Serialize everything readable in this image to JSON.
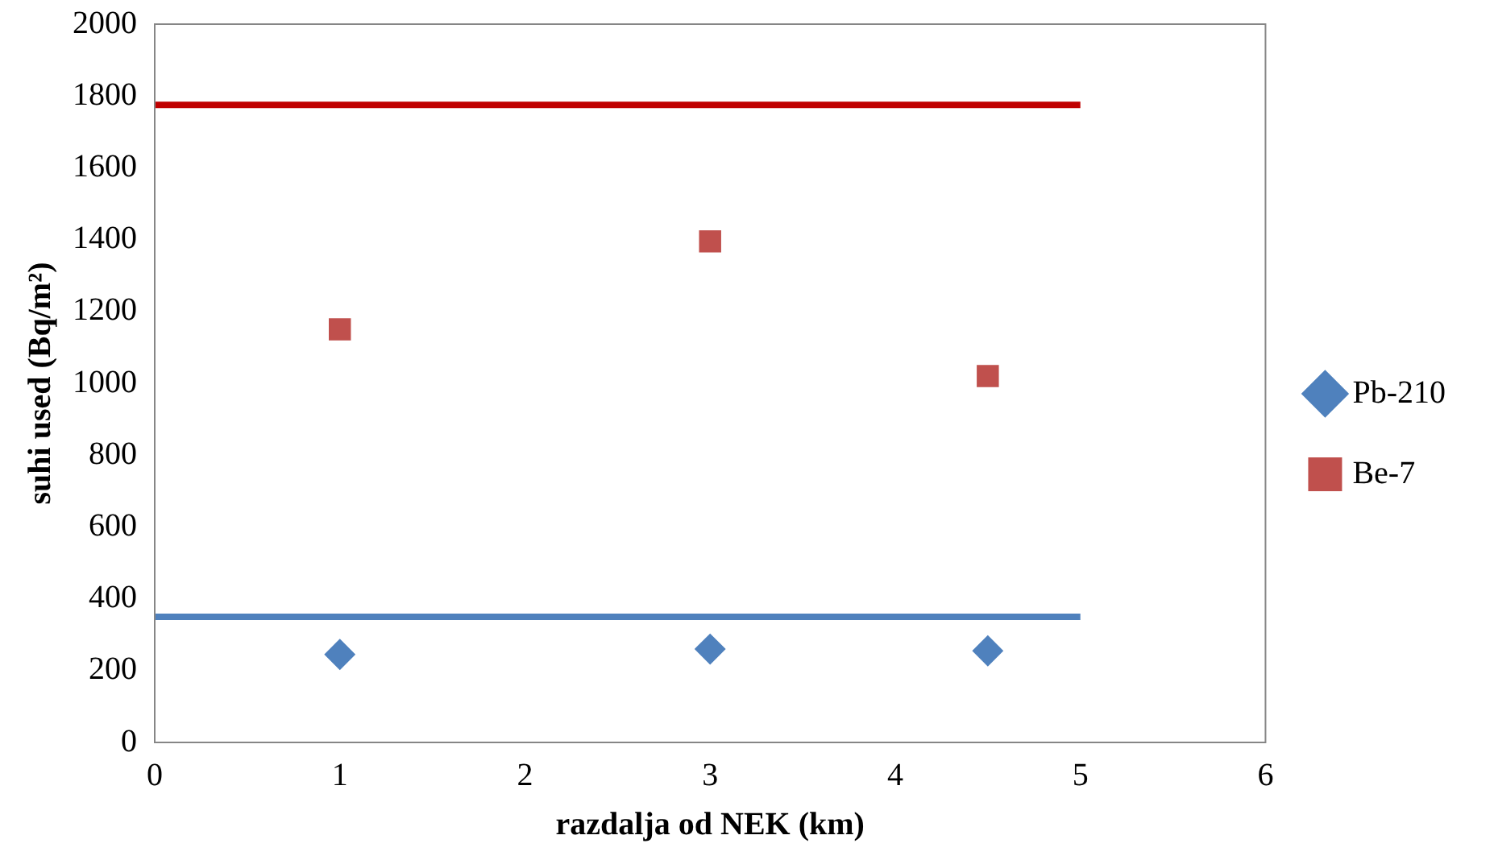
{
  "chart_data": {
    "type": "scatter",
    "xlabel": "razdalja od NEK (km)",
    "ylabel": "suhi used (Bq/m²)",
    "xlim": [
      0,
      6
    ],
    "xticks": [
      0,
      1,
      2,
      3,
      4,
      5,
      6
    ],
    "ylim": [
      0,
      2000
    ],
    "yticks": [
      0,
      200,
      400,
      600,
      800,
      1000,
      1200,
      1400,
      1600,
      1800,
      2000
    ],
    "grid": false,
    "legend": "right",
    "series": [
      {
        "name": "Pb-210",
        "color": "#4f81bd",
        "marker": "diamond",
        "x": [
          1,
          3,
          4.5
        ],
        "values": [
          245,
          260,
          255
        ]
      },
      {
        "name": "Be-7",
        "color": "#c0504d",
        "marker": "square",
        "x": [
          1,
          3,
          4.5
        ],
        "values": [
          1150,
          1395,
          1020
        ]
      },
      {
        "type": "line",
        "color": "#c00000",
        "marker": "none",
        "x": [
          0,
          5
        ],
        "values": [
          1775,
          1775
        ]
      },
      {
        "type": "line",
        "color": "#4f81bd",
        "marker": "none",
        "x": [
          0,
          5
        ],
        "values": [
          350,
          350
        ]
      }
    ]
  }
}
